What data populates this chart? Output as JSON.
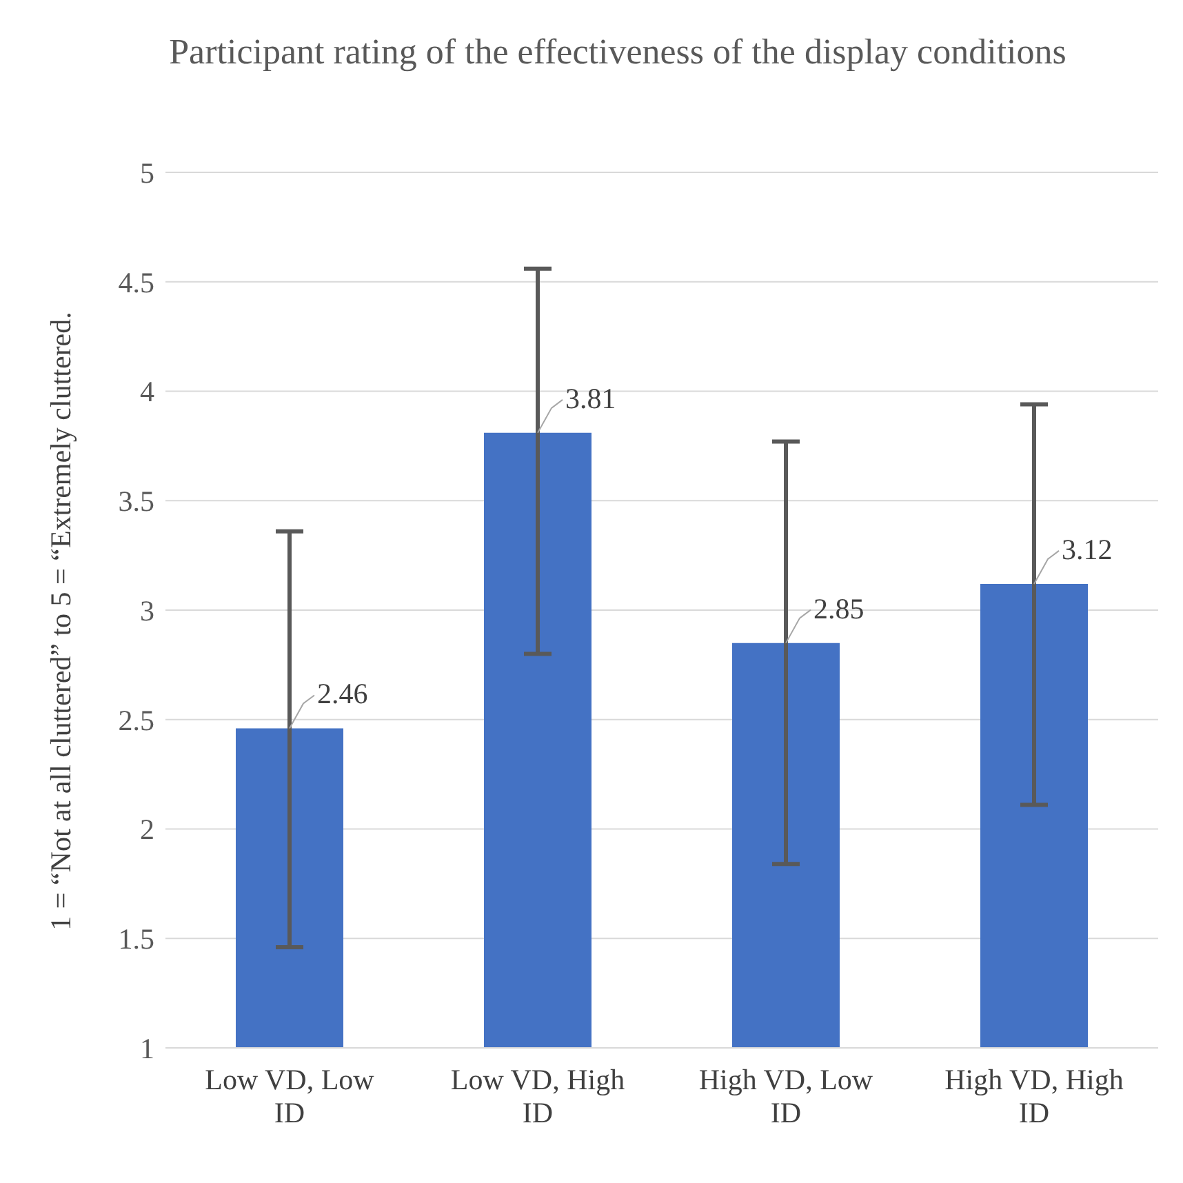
{
  "chart_data": {
    "type": "bar",
    "title": "Participant rating of the effectiveness of the display conditions",
    "ylabel": "1 = “Not at all cluttered” to 5 = “Extremely cluttered.",
    "categories": [
      "Low VD, Low ID",
      "Low VD, High ID",
      "High VD, Low ID",
      "High VD, High ID"
    ],
    "values": [
      2.46,
      3.81,
      2.85,
      3.12
    ],
    "errors": [
      [
        1.46,
        3.36
      ],
      [
        2.8,
        4.56
      ],
      [
        1.84,
        3.77
      ],
      [
        2.11,
        3.94
      ]
    ],
    "color": "#4472c4",
    "ylim": [
      1,
      5
    ],
    "yticks": [
      1,
      1.5,
      2,
      2.5,
      3,
      3.5,
      4,
      4.5,
      5
    ],
    "grid": "y",
    "data_labels": true
  }
}
